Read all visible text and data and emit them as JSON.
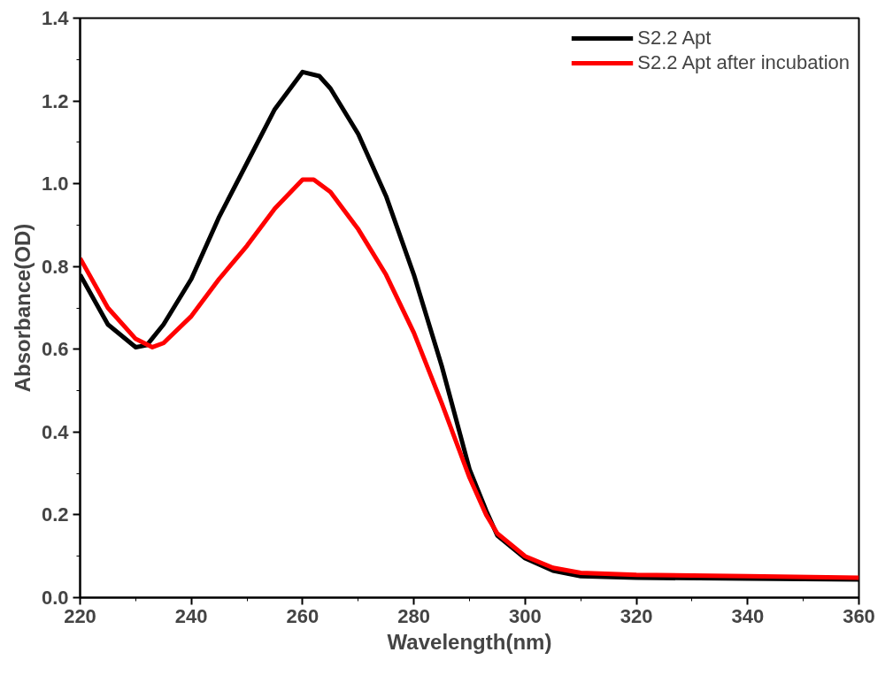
{
  "chart_data": {
    "type": "line",
    "xlabel": "Wavelength(nm)",
    "ylabel": "Absorbance(OD)",
    "xlim": [
      220,
      360
    ],
    "ylim": [
      0,
      1.4
    ],
    "xticks": [
      220,
      240,
      260,
      280,
      300,
      320,
      340,
      360
    ],
    "yticks": [
      {
        "value": 0,
        "label": "0.0"
      },
      {
        "value": 0.2,
        "label": "0.2"
      },
      {
        "value": 0.4,
        "label": "0.4"
      },
      {
        "value": 0.6,
        "label": "0.6"
      },
      {
        "value": 0.8,
        "label": "0.8"
      },
      {
        "value": 1.0,
        "label": "1.0"
      },
      {
        "value": 1.2,
        "label": "1.2"
      },
      {
        "value": 1.4,
        "label": "1.4"
      }
    ],
    "grid": false,
    "legend": "top right",
    "line_style": "solid",
    "marker": "none",
    "series": [
      {
        "name": "S2.2 Apt",
        "color": "#000000",
        "x": [
          220,
          225,
          230,
          232,
          235,
          240,
          245,
          250,
          255,
          260,
          263,
          265,
          270,
          275,
          280,
          285,
          290,
          293,
          295,
          300,
          305,
          310,
          320,
          340,
          360
        ],
        "values": [
          0.78,
          0.66,
          0.605,
          0.61,
          0.66,
          0.77,
          0.92,
          1.05,
          1.18,
          1.27,
          1.26,
          1.23,
          1.12,
          0.97,
          0.78,
          0.56,
          0.31,
          0.21,
          0.15,
          0.095,
          0.065,
          0.052,
          0.048,
          0.046,
          0.044
        ]
      },
      {
        "name": "S2.2 Apt after incubation",
        "color": "#ff0000",
        "x": [
          220,
          225,
          230,
          233,
          235,
          240,
          245,
          250,
          255,
          260,
          262,
          265,
          270,
          275,
          280,
          285,
          290,
          293,
          295,
          300,
          305,
          310,
          320,
          340,
          360
        ],
        "values": [
          0.82,
          0.7,
          0.625,
          0.605,
          0.615,
          0.68,
          0.77,
          0.85,
          0.94,
          1.01,
          1.01,
          0.98,
          0.89,
          0.78,
          0.64,
          0.47,
          0.29,
          0.2,
          0.155,
          0.1,
          0.072,
          0.06,
          0.055,
          0.052,
          0.048
        ]
      }
    ]
  }
}
